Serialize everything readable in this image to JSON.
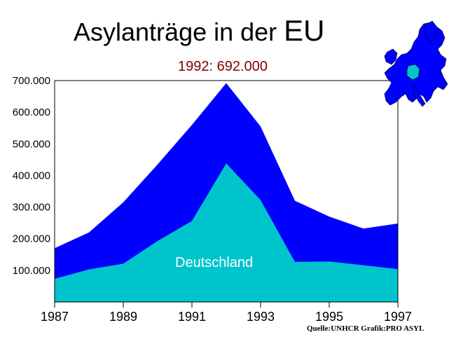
{
  "chart_data": {
    "type": "area",
    "title_main": "Asylanträge in der",
    "title_big": "EU",
    "subtitle": "1992: 692.000",
    "x": [
      1987,
      1988,
      1989,
      1990,
      1991,
      1992,
      1993,
      1994,
      1995,
      1996,
      1997
    ],
    "x_tick_labels": [
      "1987",
      "1989",
      "1991",
      "1993",
      "1995",
      "1997"
    ],
    "y_tick_labels": [
      "100.000",
      "200.000",
      "300.000",
      "400.000",
      "500.000",
      "600.000",
      "700.000"
    ],
    "y_ticks": [
      100000,
      200000,
      300000,
      400000,
      500000,
      600000,
      700000
    ],
    "ylim": [
      0,
      700000
    ],
    "xlim": [
      1987,
      1997
    ],
    "series": [
      {
        "name": "",
        "values": [
          170000,
          220000,
          315000,
          435000,
          560000,
          692000,
          555000,
          320000,
          270000,
          232000,
          248000
        ],
        "color": "#0000ff"
      },
      {
        "name": "Deutschland",
        "values": [
          73000,
          103000,
          121000,
          193000,
          256000,
          438000,
          322000,
          127000,
          128000,
          116000,
          104000
        ],
        "color": "#00c4cc"
      }
    ],
    "source": "Quelle:UNHCR Grafik:PRO ASYL",
    "grid": false
  },
  "map": {
    "land_color": "#0000ff",
    "highlight_color": "#00c4cc",
    "icon": "europe-map-icon"
  }
}
